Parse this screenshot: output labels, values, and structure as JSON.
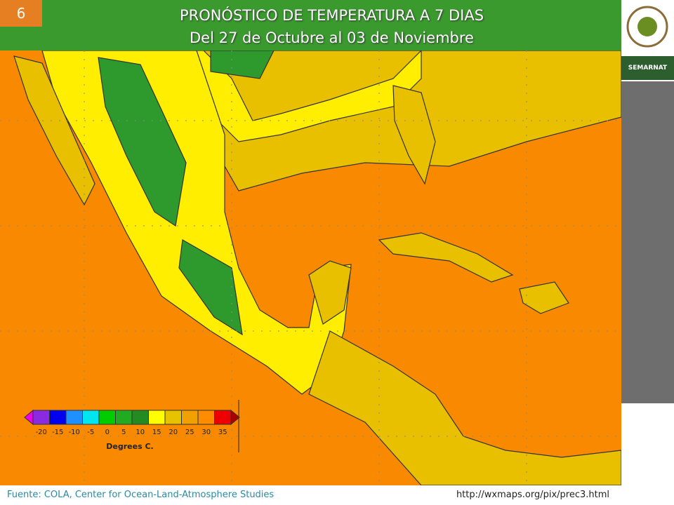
{
  "slide_number": "6",
  "header": {
    "title": "PRONÓSTICO DE TEMPERATURA A 7 DIAS",
    "subtitle": "Del 27 de Octubre al 03 de Noviembre"
  },
  "legend": {
    "labels": [
      -20,
      -15,
      -10,
      -5,
      0,
      5,
      10,
      15,
      20,
      25,
      30,
      35
    ],
    "title": "Degrees C.",
    "colors": [
      "#ee00ee",
      "#8a2be2",
      "#0000ee",
      "#1e90ff",
      "#00e5ee",
      "#00cc00",
      "#22aa22",
      "#228b22",
      "#ffff00",
      "#e6c200",
      "#f0a000",
      "#ff8c00",
      "#ee0000",
      "#aa0000"
    ]
  },
  "sidebar": {
    "agency": "SEMARNAT"
  },
  "footer": {
    "source": "Fuente: COLA, Center  for Ocean-Land-Atmosphere Studies",
    "url": "http://wxmaps.org/pix/prec3.html"
  }
}
